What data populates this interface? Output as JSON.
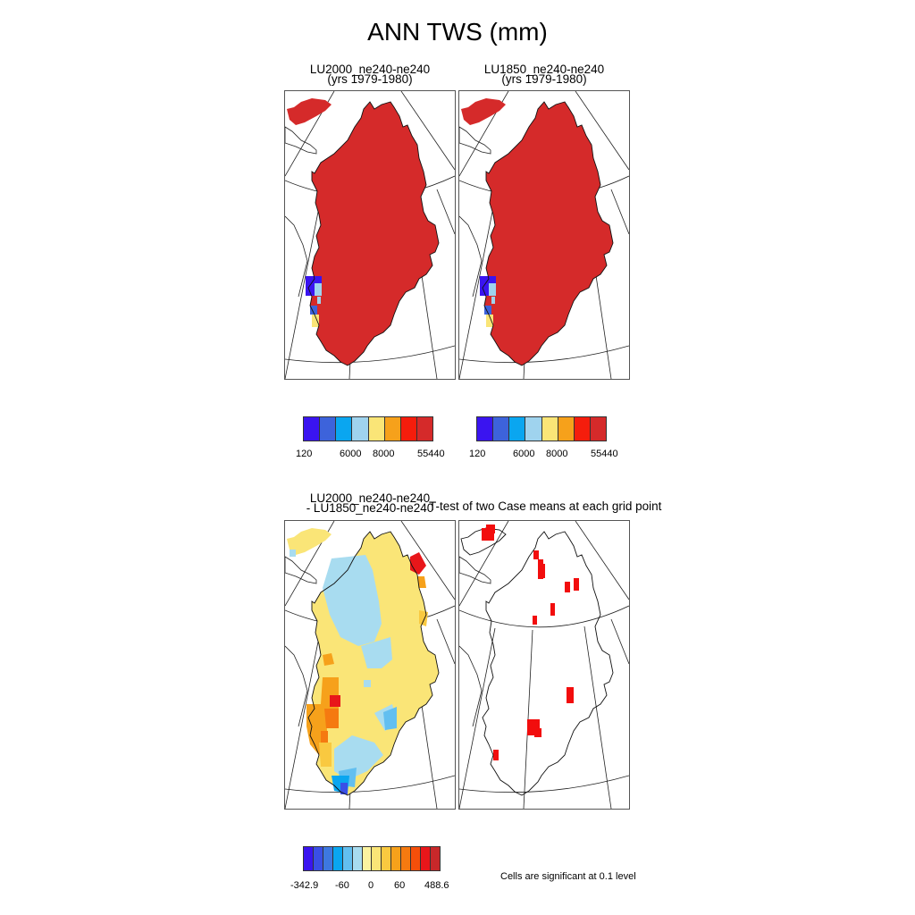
{
  "figure": {
    "title": "ANN TWS (mm)",
    "panel_1": {
      "title_line1": "LU2000_ne240-ne240",
      "title_line2": "(yrs 1979-1980)"
    },
    "panel_2": {
      "title_line1": "LU1850_ne240-ne240",
      "title_line2": "(yrs 1979-1980)"
    },
    "panel_3": {
      "title_line1": "LU2000_ne240-ne240",
      "title_line2": "- LU1850_ne240-ne240"
    },
    "panel_4": {
      "title": "T-test of two Case means at each grid point"
    },
    "significance_note": "Cells are significant at 0.1 level"
  },
  "chart_data": [
    {
      "type": "heatmap",
      "title": "LU2000_ne240-ne240 (yrs 1979-1980)",
      "colorbar": {
        "colors": [
          "#3a14f0",
          "#3d63db",
          "#0aa6f0",
          "#9fd3ee",
          "#fae577",
          "#f6a11b",
          "#f51d0c",
          "#d52a2a"
        ],
        "tick_labels": [
          "120",
          "6000",
          "8000",
          "55440"
        ]
      },
      "dominant_level": "55440",
      "note": "Greenland ice sheet at highest level; small low values along west coast"
    },
    {
      "type": "heatmap",
      "title": "LU1850_ne240-ne240 (yrs 1979-1980)",
      "colorbar": {
        "colors": [
          "#3a14f0",
          "#3d63db",
          "#0aa6f0",
          "#9fd3ee",
          "#fae577",
          "#f6a11b",
          "#f51d0c",
          "#d52a2a"
        ],
        "tick_labels": [
          "120",
          "6000",
          "8000",
          "55440"
        ]
      },
      "dominant_level": "55440"
    },
    {
      "type": "heatmap",
      "title": "LU2000_ne240-ne240 - LU1850_ne240-ne240",
      "colorbar": {
        "colors": [
          "#3a14f0",
          "#3a4fe6",
          "#3d78e0",
          "#0aa6f0",
          "#62bff0",
          "#a8dcf0",
          "#fbf3a0",
          "#fae577",
          "#f9c940",
          "#f6a11b",
          "#f57a10",
          "#f54f0a",
          "#e8161a",
          "#c8282a"
        ],
        "tick_labels": [
          "-342.9",
          "-60",
          "0",
          "60",
          "488.6"
        ]
      }
    },
    {
      "type": "heatmap",
      "title": "T-test of two Case means at each grid point",
      "significant_color": "#f20d0d",
      "note": "Cells are significant at 0.1 level"
    }
  ]
}
